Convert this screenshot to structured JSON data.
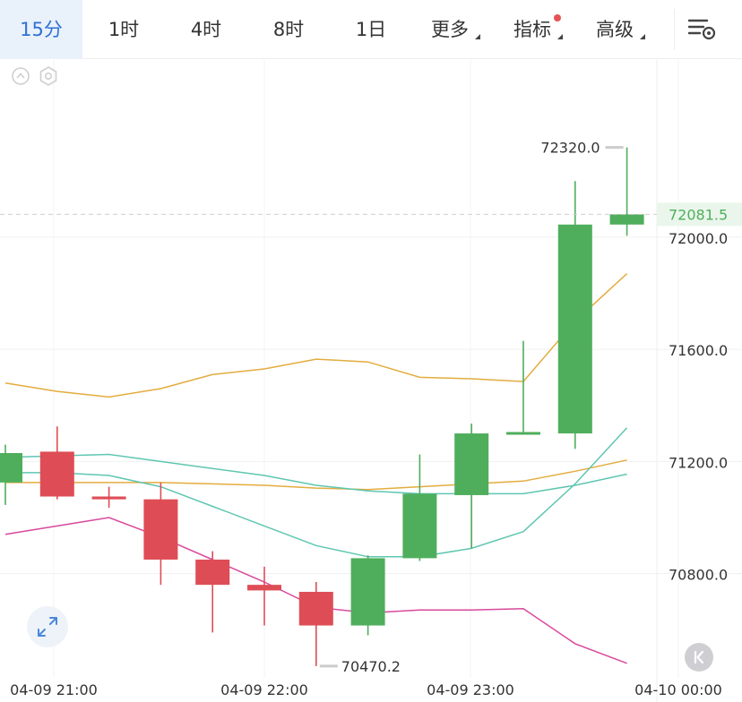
{
  "toolbar": {
    "tabs": [
      {
        "label": "15分",
        "active": true
      },
      {
        "label": "1时"
      },
      {
        "label": "4时"
      },
      {
        "label": "8时"
      },
      {
        "label": "1日"
      },
      {
        "label": "更多",
        "dropdown": true
      },
      {
        "label": "指标",
        "dropdown": true,
        "dot": true
      },
      {
        "label": "高级",
        "dropdown": true
      }
    ]
  },
  "colors": {
    "up": "#4fae5c",
    "down": "#de4d56",
    "ma_orange": "#e3ac3e",
    "boll_teal": "#5fc6b1",
    "boll_pink": "#d9489c",
    "accent": "#2f6fd6"
  },
  "chart_data": {
    "type": "candlestick",
    "y_axis": {
      "ticks": [
        72000.0,
        71600.0,
        71200.0,
        70800.0
      ],
      "range": [
        70390,
        72600
      ],
      "position": "right"
    },
    "x_axis": {
      "ticks": [
        "04-09 21:00",
        "04-09 22:00",
        "04-09 23:00",
        "04-10 00:00"
      ]
    },
    "last_price": {
      "value": 72081.5,
      "label": "72081.5"
    },
    "high_marker": {
      "value": 72320.0,
      "label": "72320.0"
    },
    "low_marker": {
      "value": 70470.2,
      "label": "70470.2"
    },
    "candles": [
      {
        "o": 71125,
        "h": 71260,
        "l": 71045,
        "c": 71230
      },
      {
        "o": 71235,
        "h": 71325,
        "l": 71065,
        "c": 71075
      },
      {
        "o": 71075,
        "h": 71110,
        "l": 71035,
        "c": 71065
      },
      {
        "o": 71065,
        "h": 71125,
        "l": 70760,
        "c": 70850
      },
      {
        "o": 70850,
        "h": 70880,
        "l": 70590,
        "c": 70760
      },
      {
        "o": 70760,
        "h": 70825,
        "l": 70615,
        "c": 70740
      },
      {
        "o": 70735,
        "h": 70770,
        "l": 70470.2,
        "c": 70615
      },
      {
        "o": 70615,
        "h": 70865,
        "l": 70580,
        "c": 70855
      },
      {
        "o": 70855,
        "h": 71225,
        "l": 70845,
        "c": 71085
      },
      {
        "o": 71080,
        "h": 71335,
        "l": 70890,
        "c": 71300
      },
      {
        "o": 71300,
        "h": 71630,
        "l": 71300,
        "c": 71305
      },
      {
        "o": 71300,
        "h": 72200,
        "l": 71245,
        "c": 72045
      },
      {
        "o": 72045,
        "h": 72320,
        "l": 72005,
        "c": 72081.5
      }
    ],
    "series": [
      {
        "color_key": "ma_orange",
        "values": [
          71480,
          71450,
          71430,
          71460,
          71510,
          71530,
          71565,
          71555,
          71500,
          71495,
          71485,
          71700,
          71870
        ]
      },
      {
        "color_key": "ma_orange",
        "values": [
          71125,
          71125,
          71125,
          71125,
          71120,
          71115,
          71105,
          71100,
          71110,
          71120,
          71130,
          71165,
          71205
        ]
      },
      {
        "color_key": "boll_teal",
        "values": [
          71215,
          71220,
          71225,
          71200,
          71175,
          71150,
          71115,
          71095,
          71085,
          71085,
          71085,
          71115,
          71155
        ]
      },
      {
        "color_key": "boll_teal",
        "values": [
          71160,
          71160,
          71150,
          71110,
          71040,
          70970,
          70900,
          70860,
          70860,
          70890,
          70950,
          71120,
          71320
        ]
      },
      {
        "color_key": "boll_pink",
        "values": [
          70940,
          70970,
          71000,
          70930,
          70850,
          70770,
          70680,
          70660,
          70670,
          70670,
          70675,
          70550,
          70480
        ]
      }
    ]
  }
}
